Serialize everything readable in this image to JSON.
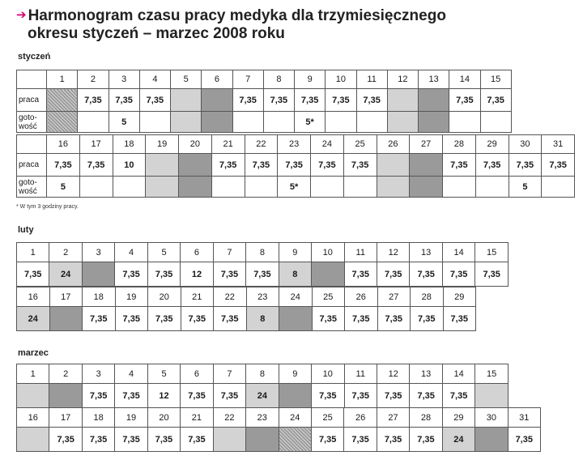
{
  "title": {
    "line1": "Harmonogram czasu pracy medyka dla trzymiesięcznego",
    "line2": "okresu styczeń – marzec 2008 roku"
  },
  "labels": {
    "praca": "praca",
    "gotowosc_1": "goto-",
    "gotowosc_2": "wość"
  },
  "footnote": "* W tym 3 godziny pracy.",
  "styczen": {
    "title": "styczeń",
    "part1": {
      "days": [
        "1",
        "2",
        "3",
        "4",
        "5",
        "6",
        "7",
        "8",
        "9",
        "10",
        "11",
        "12",
        "13",
        "14",
        "15"
      ],
      "praca": [
        "",
        "7,35",
        "7,35",
        "7,35",
        "",
        "",
        "7,35",
        "7,35",
        "7,35",
        "7,35",
        "7,35",
        "",
        "",
        "7,35",
        "7,35"
      ],
      "gotowosc": [
        "",
        "",
        "5",
        "",
        "",
        "",
        "",
        "",
        "5*",
        "",
        "",
        "",
        "",
        "",
        ""
      ],
      "shade": [
        "hatch",
        "",
        "",
        "",
        "light",
        "dark",
        "",
        "",
        "",
        "",
        "",
        "light",
        "dark",
        "",
        ""
      ]
    },
    "part2": {
      "days": [
        "16",
        "17",
        "18",
        "19",
        "20",
        "21",
        "22",
        "23",
        "24",
        "25",
        "26",
        "27",
        "28",
        "29",
        "30",
        "31"
      ],
      "praca": [
        "7,35",
        "7,35",
        "10",
        "",
        "",
        "7,35",
        "7,35",
        "7,35",
        "7,35",
        "7,35",
        "",
        "",
        "7,35",
        "7,35",
        "7,35",
        "7,35"
      ],
      "gotowosc": [
        "5",
        "",
        "",
        "",
        "",
        "",
        "",
        "5*",
        "",
        "",
        "",
        "",
        "",
        "",
        "5",
        ""
      ],
      "shade": [
        "",
        "",
        "",
        "light",
        "dark",
        "",
        "",
        "",
        "",
        "",
        "light",
        "dark",
        "",
        "",
        "",
        ""
      ]
    }
  },
  "luty": {
    "title": "luty",
    "part1": {
      "days": [
        "1",
        "2",
        "3",
        "4",
        "5",
        "6",
        "7",
        "8",
        "9",
        "10",
        "11",
        "12",
        "13",
        "14",
        "15"
      ],
      "values": [
        "7,35",
        "24",
        "",
        "7,35",
        "7,35",
        "12",
        "7,35",
        "7,35",
        "8",
        "",
        "7,35",
        "7,35",
        "7,35",
        "7,35",
        "7,35"
      ],
      "shade": [
        "",
        "light",
        "dark",
        "",
        "",
        "",
        "",
        "",
        "light",
        "dark",
        "",
        "",
        "",
        "",
        ""
      ]
    },
    "part2": {
      "days": [
        "16",
        "17",
        "18",
        "19",
        "20",
        "21",
        "22",
        "23",
        "24",
        "25",
        "26",
        "27",
        "28",
        "29"
      ],
      "values": [
        "24",
        "",
        "7,35",
        "7,35",
        "7,35",
        "7,35",
        "7,35",
        "8",
        "",
        "7,35",
        "7,35",
        "7,35",
        "7,35",
        "7,35"
      ],
      "shade": [
        "light",
        "dark",
        "",
        "",
        "",
        "",
        "",
        "light",
        "dark",
        "",
        "",
        "",
        "",
        ""
      ]
    }
  },
  "marzec": {
    "title": "marzec",
    "part1": {
      "days": [
        "1",
        "2",
        "3",
        "4",
        "5",
        "6",
        "7",
        "8",
        "9",
        "10",
        "11",
        "12",
        "13",
        "14",
        "15"
      ],
      "values": [
        "",
        "",
        "7,35",
        "7,35",
        "12",
        "7,35",
        "7,35",
        "24",
        "",
        "7,35",
        "7,35",
        "7,35",
        "7,35",
        "7,35",
        ""
      ],
      "shade": [
        "light",
        "dark",
        "",
        "",
        "",
        "",
        "",
        "light",
        "dark",
        "",
        "",
        "",
        "",
        "",
        "light"
      ]
    },
    "part2": {
      "days": [
        "16",
        "17",
        "18",
        "19",
        "20",
        "21",
        "22",
        "23",
        "24",
        "25",
        "26",
        "27",
        "28",
        "29",
        "30",
        "31"
      ],
      "values": [
        "",
        "7,35",
        "7,35",
        "7,35",
        "7,35",
        "7,35",
        "",
        "",
        "",
        "7,35",
        "7,35",
        "7,35",
        "7,35",
        "24",
        "",
        "7,35"
      ],
      "shade": [
        "light",
        "",
        "",
        "",
        "",
        "",
        "light",
        "dark",
        "hatch",
        "",
        "",
        "",
        "",
        "light",
        "dark",
        ""
      ]
    }
  }
}
